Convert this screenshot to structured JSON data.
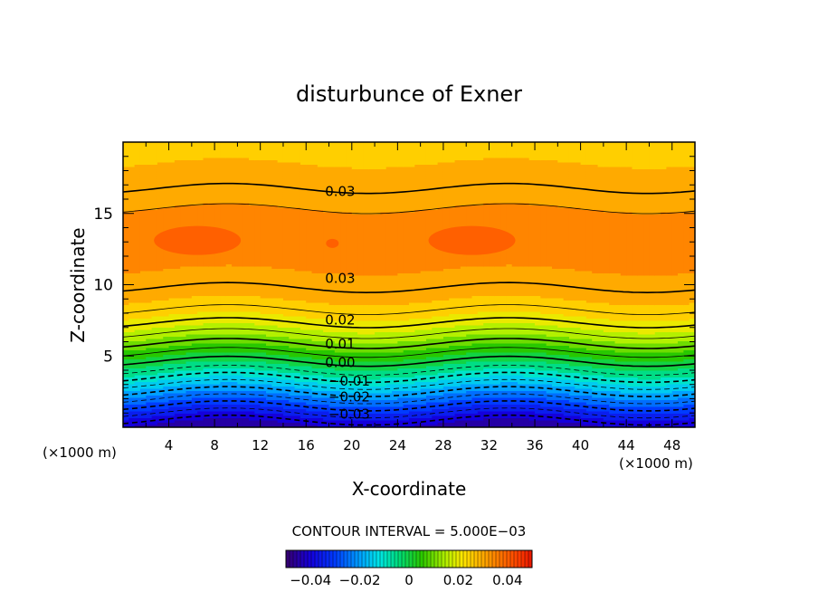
{
  "chart_data": {
    "type": "contour",
    "title": "disturbunce of Exner",
    "xlabel": "X-coordinate",
    "ylabel": "Z-coordinate",
    "x_unit_left": "(×1000 m)",
    "x_unit_right": "(×1000 m)",
    "xlim": [
      0,
      50
    ],
    "ylim": [
      0,
      20
    ],
    "xticks": [
      4,
      8,
      12,
      16,
      20,
      24,
      28,
      32,
      36,
      40,
      44,
      48
    ],
    "yticks": [
      5,
      10,
      15
    ],
    "contour_labels": [
      {
        "text": "0.03",
        "x": 17.5,
        "z": 16.6
      },
      {
        "text": "0.03",
        "x": 17.5,
        "z": 10.5
      },
      {
        "text": "0.02",
        "x": 17.5,
        "z": 7.6
      },
      {
        "text": "0.01",
        "x": 17.5,
        "z": 5.9
      },
      {
        "text": "0.00",
        "x": 17.5,
        "z": 4.6
      },
      {
        "text": "−0.01",
        "x": 17.8,
        "z": 3.3
      },
      {
        "text": "−0.02",
        "x": 17.8,
        "z": 2.2
      },
      {
        "text": "−0.03",
        "x": 17.8,
        "z": 1.0
      }
    ],
    "field_profile": {
      "z": [
        0,
        1,
        2,
        3,
        4,
        5,
        6,
        7,
        8,
        9,
        10,
        11,
        12,
        13,
        14,
        15,
        16,
        17,
        18,
        19,
        20
      ],
      "value": [
        -0.045,
        -0.035,
        -0.025,
        -0.015,
        -0.005,
        0.003,
        0.011,
        0.018,
        0.024,
        0.028,
        0.0305,
        0.0325,
        0.034,
        0.0345,
        0.034,
        0.033,
        0.0315,
        0.0295,
        0.028,
        0.027,
        0.026
      ]
    },
    "contour_interval_text": "CONTOUR INTERVAL = 5.000E−03",
    "colorbar": {
      "range": [
        -0.05,
        0.05
      ],
      "ticks": [
        "−0.04",
        "−0.02",
        "0",
        "0.02",
        "0.04"
      ],
      "tick_values": [
        -0.04,
        -0.02,
        0,
        0.02,
        0.04
      ]
    }
  }
}
